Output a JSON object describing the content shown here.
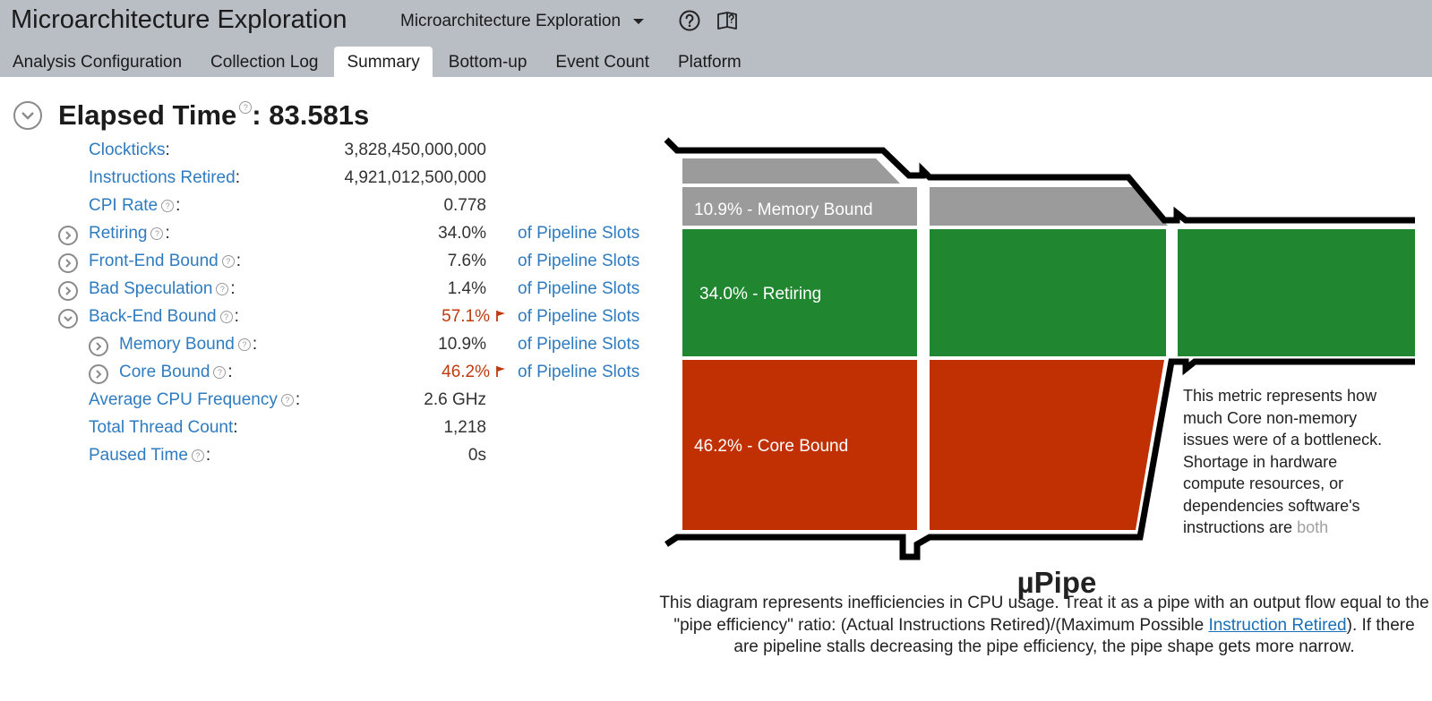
{
  "header": {
    "app_title": "Microarchitecture Exploration",
    "analysis_select": "Microarchitecture Exploration",
    "help_icon": "help-circle-icon",
    "guide_icon": "book-help-icon"
  },
  "tabs": [
    {
      "label": "Analysis Configuration"
    },
    {
      "label": "Collection Log"
    },
    {
      "label": "Summary",
      "active": true
    },
    {
      "label": "Bottom-up"
    },
    {
      "label": "Event Count"
    },
    {
      "label": "Platform"
    }
  ],
  "summary": {
    "elapsed_label": "Elapsed Time",
    "elapsed_value": ": 83.581s",
    "unit": "of Pipeline Slots",
    "metrics": {
      "clockticks": {
        "label": "Clockticks",
        "value": "3,828,450,000,000"
      },
      "instructions_retired": {
        "label": "Instructions Retired",
        "value": "4,921,012,500,000"
      },
      "cpi_rate": {
        "label": "CPI Rate",
        "value": "0.778"
      },
      "retiring": {
        "label": "Retiring",
        "value": "34.0%"
      },
      "front_end_bound": {
        "label": "Front-End Bound",
        "value": "7.6%"
      },
      "bad_speculation": {
        "label": "Bad Speculation",
        "value": "1.4%"
      },
      "back_end_bound": {
        "label": "Back-End Bound",
        "value": "57.1%",
        "flagged": true
      },
      "memory_bound": {
        "label": "Memory Bound",
        "value": "10.9%"
      },
      "core_bound": {
        "label": "Core Bound",
        "value": "46.2%",
        "flagged": true
      },
      "avg_cpu_freq": {
        "label": "Average CPU Frequency",
        "value": "2.6 GHz"
      },
      "total_thread_count": {
        "label": "Total Thread Count",
        "value": "1,218"
      },
      "paused_time": {
        "label": "Paused Time",
        "value": "0s"
      }
    }
  },
  "upipe": {
    "title": "µPipe",
    "labels": {
      "memory_bound": "10.9% - Memory Bound",
      "retiring": "34.0% - Retiring",
      "core_bound": "46.2% - Core Bound"
    },
    "colors": {
      "memory": "#9b9b9b",
      "retiring": "#218630",
      "core": "#c03003",
      "outline": "#000000"
    },
    "tooltip_main": "This metric represents how much Core non-memory issues were of a bottleneck. Shortage in hardware compute resources, or dependencies software's instructions are",
    "tooltip_fade": "both",
    "caption_before": "This diagram represents inefficiencies in CPU usage. Treat it as a pipe with an output flow equal to the \"pipe efficiency\" ratio: (Actual Instructions Retired)/(Maximum Possible",
    "caption_link": "Instruction Retired",
    "caption_after": "). If there are pipeline stalls decreasing the pipe efficiency, the pipe shape gets more narrow."
  }
}
